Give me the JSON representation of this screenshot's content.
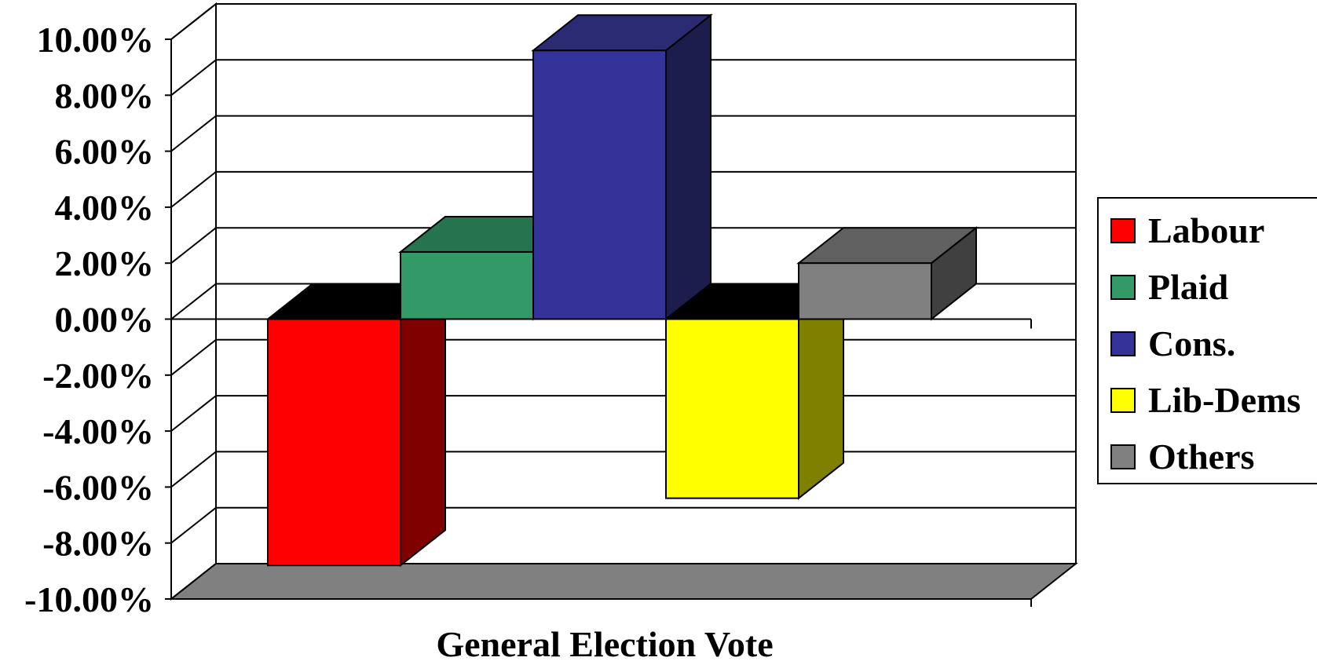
{
  "chart_data": {
    "type": "bar",
    "style": "3d-clustered-column",
    "xlabel": "General Election Vote",
    "ylabel": "",
    "ylim": [
      -10,
      10
    ],
    "tick_step": 2,
    "y_tick_labels": [
      "10.00%",
      "8.00%",
      "6.00%",
      "4.00%",
      "2.00%",
      "0.00%",
      "-2.00%",
      "-4.00%",
      "-6.00%",
      "-8.00%",
      "-10.00%"
    ],
    "grid": true,
    "legend_position": "right",
    "categories": [
      "General Election Vote"
    ],
    "series": [
      {
        "name": "Labour",
        "value": -8.8,
        "color": "#ff0000",
        "side_color": "#800000",
        "top_color": "#000000"
      },
      {
        "name": "Plaid",
        "value": 2.4,
        "color": "#339966",
        "side_color": "#1f6b45",
        "top_color": "#267350"
      },
      {
        "name": "Cons.",
        "value": 9.6,
        "color": "#333399",
        "side_color": "#1c1c4d",
        "top_color": "#2b2b73"
      },
      {
        "name": "Lib-Dems",
        "value": -6.4,
        "color": "#ffff00",
        "side_color": "#808000",
        "top_color": "#000000"
      },
      {
        "name": "Others",
        "value": 2.0,
        "color": "#808080",
        "side_color": "#404040",
        "top_color": "#606060"
      }
    ],
    "floor_color": "#808080"
  }
}
